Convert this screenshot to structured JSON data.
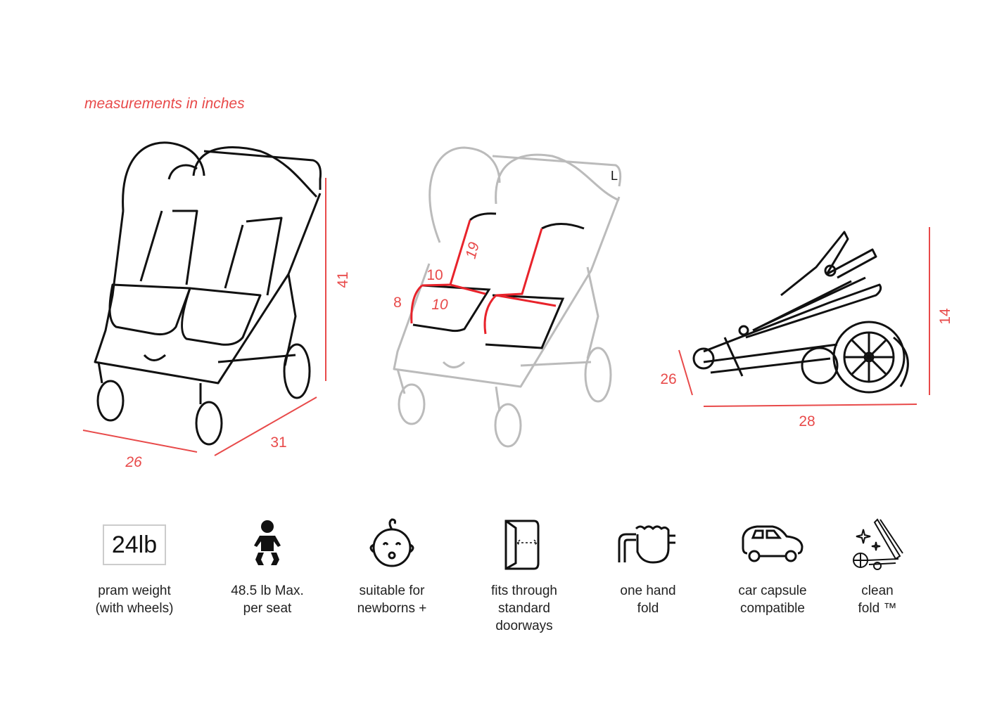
{
  "header": {
    "note": "measurements in inches"
  },
  "colors": {
    "accent": "#e84a4a",
    "line": "#111111",
    "faded": "#bbbbbb"
  },
  "stroller_front": {
    "height": "41",
    "width": "26",
    "depth": "31"
  },
  "stroller_seat": {
    "backrest": "19",
    "seat_width": "10",
    "seat_depth": "10",
    "footrest": "8",
    "marker": "L"
  },
  "stroller_folded": {
    "height": "14",
    "length": "28",
    "width": "26"
  },
  "features": [
    {
      "icon": "weight-box-icon",
      "value": "24lb",
      "label": "pram weight\n(with wheels)"
    },
    {
      "icon": "child-icon",
      "label": "48.5 lb Max.\nper seat"
    },
    {
      "icon": "baby-face-icon",
      "label": "suitable for\nnewborns +"
    },
    {
      "icon": "doorway-icon",
      "label": "fits through\nstandard\ndoorways"
    },
    {
      "icon": "hand-fold-icon",
      "label": "one hand\nfold"
    },
    {
      "icon": "car-icon",
      "label": "car capsule\ncompatible"
    },
    {
      "icon": "clean-fold-icon",
      "label": "clean\nfold ™"
    }
  ]
}
